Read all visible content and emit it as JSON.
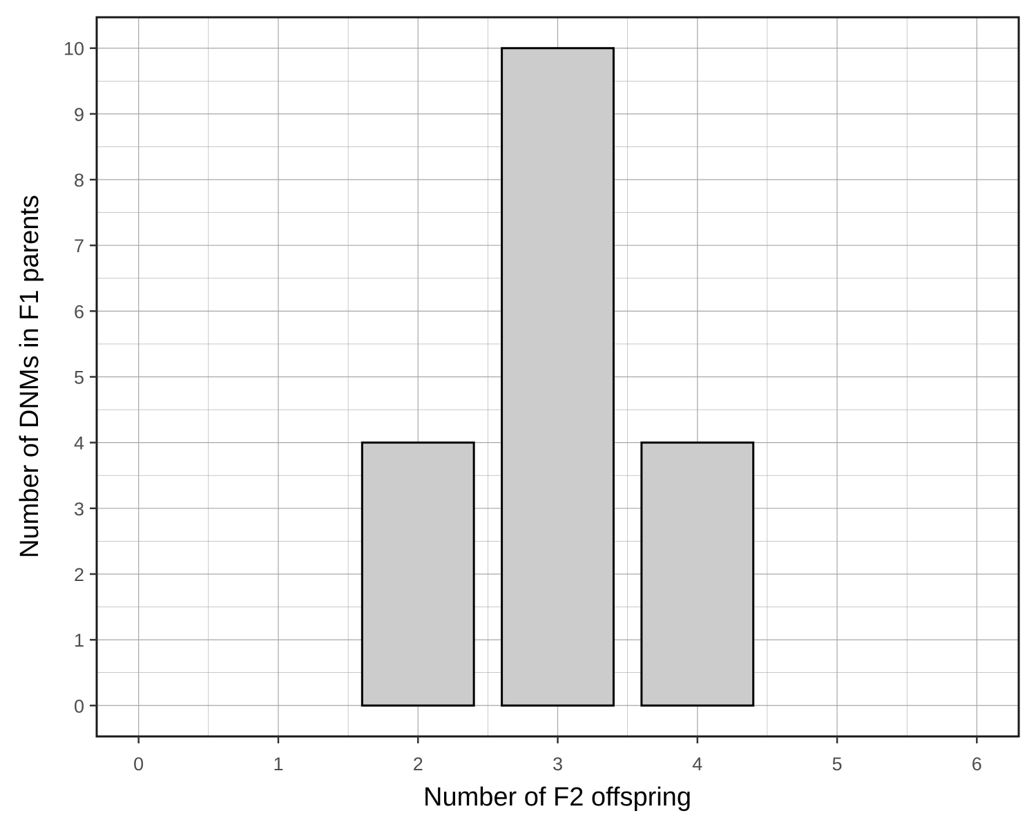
{
  "chart_data": {
    "type": "bar",
    "x": [
      2,
      3,
      4
    ],
    "values": [
      4,
      10,
      4
    ],
    "bar_width": 0.8,
    "title": "",
    "xlabel": "Number of F2 offspring",
    "ylabel": "Number of DNMs in F1 parents",
    "xlim": [
      -0.3,
      6.3
    ],
    "ylim": [
      -0.47,
      10.47
    ],
    "x_ticks": [
      0,
      1,
      2,
      3,
      4,
      5,
      6
    ],
    "y_ticks": [
      0,
      1,
      2,
      3,
      4,
      5,
      6,
      7,
      8,
      9,
      10
    ],
    "grid": true,
    "legend": "none",
    "colors": {
      "bar_fill": "#cccccc",
      "bar_stroke": "#000000",
      "grid": "#a6a6a6",
      "panel_border": "#1a1a1a",
      "tick_label": "#4d4d4d"
    }
  }
}
